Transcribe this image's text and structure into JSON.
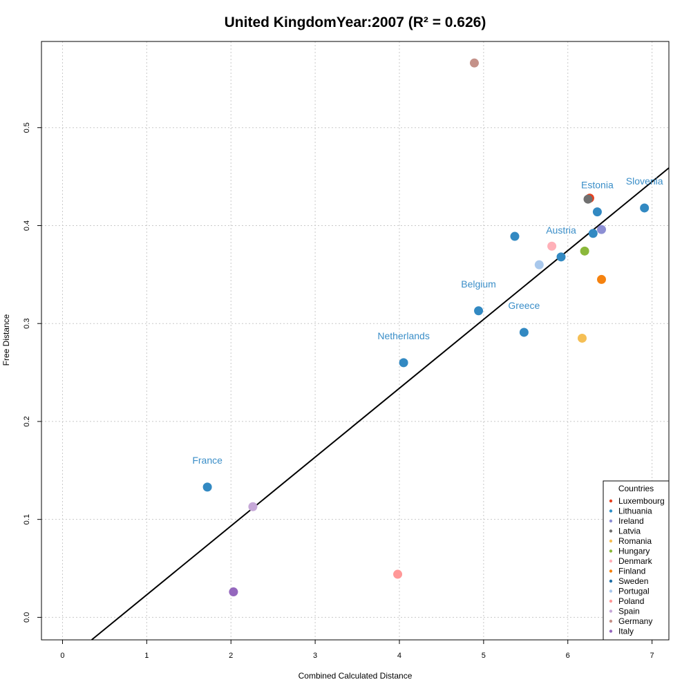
{
  "chart_data": {
    "type": "scatter",
    "title": "United KingdomYear:2007 (R² = 0.626)",
    "xlabel": "Combined Calculated Distance",
    "ylabel": "Free Distance",
    "xlim": [
      -0.25,
      7.2
    ],
    "ylim": [
      -0.023,
      0.588
    ],
    "xticks": [
      "0",
      "1",
      "2",
      "3",
      "4",
      "5",
      "6",
      "7"
    ],
    "yticks": [
      "0.0",
      "0.1",
      "0.2",
      "0.3",
      "0.4",
      "0.5"
    ],
    "grid": true,
    "regression_line": {
      "slope": 0.0703,
      "intercept": -0.0473,
      "color": "#000000"
    },
    "legend": {
      "title": "Countries",
      "placement": "bottom-right",
      "entries": [
        {
          "name": "Luxembourg",
          "color": "#e6401f"
        },
        {
          "name": "Lithuania",
          "color": "#2f8fc8"
        },
        {
          "name": "Ireland",
          "color": "#8c8fd4"
        },
        {
          "name": "Latvia",
          "color": "#707070"
        },
        {
          "name": "Romania",
          "color": "#f5bf55"
        },
        {
          "name": "Hungary",
          "color": "#8bb83b"
        },
        {
          "name": "Denmark",
          "color": "#ffb0b8"
        },
        {
          "name": "Finland",
          "color": "#f5820f"
        },
        {
          "name": "Sweden",
          "color": "#1f6ea6"
        },
        {
          "name": "Portugal",
          "color": "#a9c8ec"
        },
        {
          "name": "Poland",
          "color": "#ff9898"
        },
        {
          "name": "Spain",
          "color": "#c6a8d8"
        },
        {
          "name": "Germany",
          "color": "#c49189"
        },
        {
          "name": "Italy",
          "color": "#9467bd"
        }
      ]
    },
    "points": [
      {
        "x": 1.72,
        "y": 0.133,
        "color": "#3289c2",
        "label": "France"
      },
      {
        "x": 2.03,
        "y": 0.026,
        "color": "#9467bd",
        "label": ""
      },
      {
        "x": 2.26,
        "y": 0.113,
        "color": "#c6a8d8",
        "label": ""
      },
      {
        "x": 3.98,
        "y": 0.044,
        "color": "#ff9898",
        "label": ""
      },
      {
        "x": 4.05,
        "y": 0.26,
        "color": "#3289c2",
        "label": "Netherlands"
      },
      {
        "x": 4.89,
        "y": 0.566,
        "color": "#c49189",
        "label": ""
      },
      {
        "x": 4.94,
        "y": 0.313,
        "color": "#3289c2",
        "label": "Belgium"
      },
      {
        "x": 5.37,
        "y": 0.389,
        "color": "#3289c2",
        "label": ""
      },
      {
        "x": 5.48,
        "y": 0.291,
        "color": "#3289c2",
        "label": "Greece"
      },
      {
        "x": 5.66,
        "y": 0.36,
        "color": "#a9c8ec",
        "label": ""
      },
      {
        "x": 5.81,
        "y": 0.379,
        "color": "#ffb0b8",
        "label": ""
      },
      {
        "x": 5.92,
        "y": 0.368,
        "color": "#3289c2",
        "label": "Austria"
      },
      {
        "x": 6.17,
        "y": 0.285,
        "color": "#f5bf55",
        "label": ""
      },
      {
        "x": 6.2,
        "y": 0.374,
        "color": "#8bb83b",
        "label": ""
      },
      {
        "x": 6.26,
        "y": 0.428,
        "color": "#e6401f",
        "label": ""
      },
      {
        "x": 6.24,
        "y": 0.427,
        "color": "#707070",
        "label": ""
      },
      {
        "x": 6.3,
        "y": 0.392,
        "color": "#3289c2",
        "label": ""
      },
      {
        "x": 6.35,
        "y": 0.414,
        "color": "#3289c2",
        "label": "Estonia"
      },
      {
        "x": 6.4,
        "y": 0.345,
        "color": "#f5820f",
        "label": ""
      },
      {
        "x": 6.4,
        "y": 0.396,
        "color": "#8c8fd4",
        "label": ""
      },
      {
        "x": 6.91,
        "y": 0.418,
        "color": "#3289c2",
        "label": "Slovenia"
      }
    ]
  }
}
